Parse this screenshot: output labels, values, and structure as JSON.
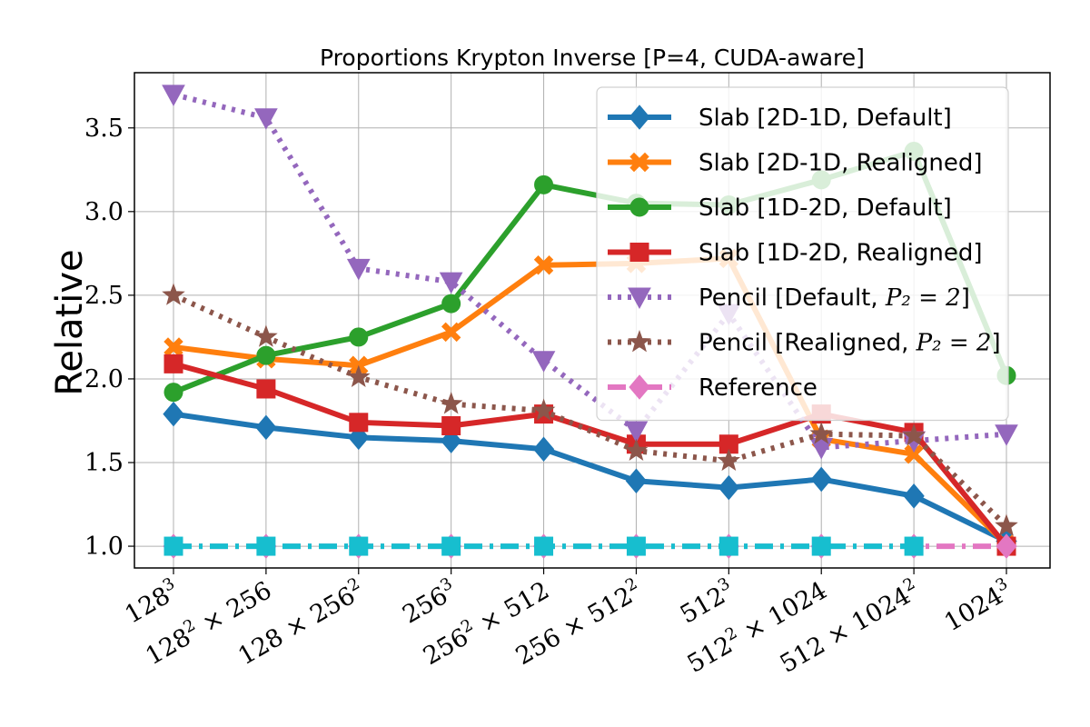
{
  "chart_data": {
    "type": "line",
    "title": "Proportions Krypton Inverse [P=4, CUDA-aware]",
    "xlabel": "",
    "ylabel": "Relative",
    "ylim": [
      0.87,
      3.83
    ],
    "yticks": [
      "1.0",
      "1.5",
      "2.0",
      "2.5",
      "3.0",
      "3.5"
    ],
    "categories": [
      {
        "base": "128",
        "sup": "3",
        "rest": ""
      },
      {
        "base": "128",
        "sup": "2",
        "rest": " × 256"
      },
      {
        "base": "128 × 256",
        "sup": "2",
        "rest": ""
      },
      {
        "base": "256",
        "sup": "3",
        "rest": ""
      },
      {
        "base": "256",
        "sup": "2",
        "rest": " × 512"
      },
      {
        "base": "256 × 512",
        "sup": "2",
        "rest": ""
      },
      {
        "base": "512",
        "sup": "3",
        "rest": ""
      },
      {
        "base": "512",
        "sup": "2",
        "rest": " × 1024"
      },
      {
        "base": "512 × 1024",
        "sup": "2",
        "rest": ""
      },
      {
        "base": "1024",
        "sup": "3",
        "rest": ""
      }
    ],
    "grid": true,
    "legend_position": "top-right",
    "series": [
      {
        "name": "Slab [2D-1D, Default]",
        "color": "#1f77b4",
        "marker": "diamond",
        "linestyle": "solid",
        "values": [
          1.79,
          1.71,
          1.65,
          1.63,
          1.58,
          1.39,
          1.35,
          1.4,
          1.3,
          1.03
        ]
      },
      {
        "name": "Slab [2D-1D, Realigned]",
        "color": "#ff7f0e",
        "marker": "x-filled",
        "linestyle": "solid",
        "values": [
          2.19,
          2.12,
          2.08,
          2.28,
          2.68,
          2.69,
          2.72,
          1.64,
          1.55,
          1.01
        ]
      },
      {
        "name": "Slab [1D-2D, Default]",
        "color": "#2ca02c",
        "marker": "circle",
        "linestyle": "solid",
        "values": [
          1.92,
          2.14,
          2.25,
          2.45,
          3.16,
          3.05,
          3.04,
          3.19,
          3.36,
          2.02
        ]
      },
      {
        "name": "Slab [1D-2D, Realigned]",
        "color": "#d62728",
        "marker": "square",
        "linestyle": "solid",
        "values": [
          2.09,
          1.94,
          1.74,
          1.72,
          1.79,
          1.61,
          1.61,
          1.79,
          1.68,
          1.0
        ]
      },
      {
        "name": "Pencil [Default, ",
        "name_math": "P₂ = 2",
        "name_end": "]",
        "color": "#9467bd",
        "marker": "triangle-down",
        "linestyle": "dotted",
        "values": [
          3.7,
          3.56,
          2.66,
          2.58,
          2.11,
          1.69,
          2.39,
          1.59,
          1.63,
          1.67
        ]
      },
      {
        "name": "Pencil [Realigned, ",
        "name_math": "P₂ = 2",
        "name_end": "]",
        "color": "#8c564b",
        "marker": "star",
        "linestyle": "dotted",
        "values": [
          2.5,
          2.25,
          2.01,
          1.85,
          1.81,
          1.57,
          1.51,
          1.67,
          1.66,
          1.12
        ]
      },
      {
        "name": "Reference",
        "color": "#e377c2",
        "marker": "diamond",
        "linestyle": "dashdot",
        "values": [
          1.0,
          1.0,
          1.0,
          1.0,
          1.0,
          1.0,
          1.0,
          1.0,
          1.0,
          1.0
        ]
      },
      {
        "name": "",
        "color": "#17becf",
        "marker": "square",
        "linestyle": "dashdot",
        "values": [
          1.0,
          1.0,
          1.0,
          1.0,
          1.0,
          1.0,
          1.0,
          1.0,
          1.0,
          null
        ]
      }
    ]
  }
}
